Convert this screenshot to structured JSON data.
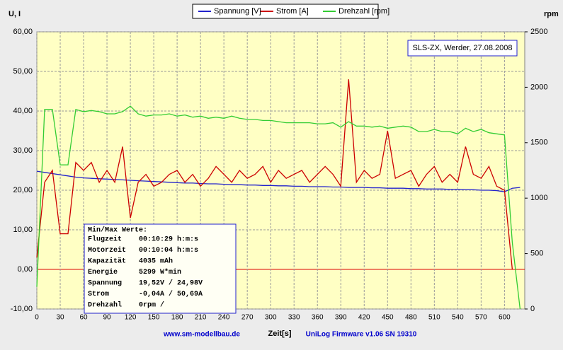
{
  "chart_data": {
    "type": "line",
    "legend": [
      "Spannung [V]",
      "Strom [A]",
      "Drehzahl [rpm]"
    ],
    "y_label": "U, I",
    "y2_label": "rpm",
    "x_label": "Zeit[s]",
    "annotation": "SLS-ZX, Werder, 27.08.2008",
    "footer_left": "www.sm-modellbau.de",
    "footer_right": "UniLog Firmware v1.06 SN 19310",
    "info_box": {
      "title": "Min/Max Werte:",
      "rows": [
        [
          "Flugzeit",
          "00:10:29 h:m:s"
        ],
        [
          "Motorzeit",
          "00:10:04 h:m:s"
        ],
        [
          "Kapazität",
          "4035 mAh"
        ],
        [
          "Energie",
          "5299 W*min"
        ],
        [
          "Spannung",
          "19,52V / 24,98V"
        ],
        [
          "Strom",
          "-0,04A / 50,69A"
        ],
        [
          "Drehzahl",
          "0rpm /"
        ]
      ]
    },
    "x": [
      0,
      10,
      20,
      30,
      40,
      50,
      60,
      70,
      80,
      90,
      100,
      110,
      120,
      130,
      140,
      150,
      160,
      170,
      180,
      190,
      200,
      210,
      220,
      230,
      240,
      250,
      260,
      270,
      280,
      290,
      300,
      310,
      320,
      330,
      340,
      350,
      360,
      370,
      380,
      390,
      400,
      410,
      420,
      430,
      440,
      450,
      460,
      470,
      480,
      490,
      500,
      510,
      520,
      530,
      540,
      550,
      560,
      570,
      580,
      590,
      600,
      610,
      620
    ],
    "series": [
      {
        "name": "Spannung [V]",
        "color": "#2222cc",
        "values": [
          24.8,
          24.5,
          24.2,
          23.9,
          23.6,
          23.3,
          23.1,
          23.0,
          22.9,
          22.8,
          22.7,
          22.6,
          22.5,
          22.4,
          22.3,
          22.2,
          22.1,
          22.0,
          21.9,
          21.8,
          21.8,
          21.7,
          21.6,
          21.6,
          21.5,
          21.4,
          21.4,
          21.3,
          21.3,
          21.2,
          21.2,
          21.1,
          21.1,
          21.0,
          21.0,
          20.9,
          20.9,
          20.9,
          20.8,
          20.8,
          20.7,
          20.7,
          20.7,
          20.6,
          20.6,
          20.5,
          20.5,
          20.5,
          20.4,
          20.4,
          20.3,
          20.3,
          20.3,
          20.2,
          20.2,
          20.1,
          20.1,
          20.0,
          20.0,
          19.9,
          19.6,
          20.5,
          20.7
        ]
      },
      {
        "name": "Strom [A]",
        "color": "#cc0000",
        "values": [
          3,
          22,
          25,
          9,
          9,
          27,
          25,
          27,
          22,
          25,
          22,
          31,
          13,
          22,
          24,
          21,
          22,
          24,
          25,
          22,
          24,
          21,
          23,
          26,
          24,
          22,
          25,
          23,
          24,
          26,
          22,
          25,
          23,
          24,
          25,
          22,
          24,
          26,
          24,
          21,
          48,
          22,
          25,
          23,
          24,
          35,
          23,
          24,
          25,
          21,
          24,
          26,
          22,
          24,
          22,
          31,
          24,
          23,
          26,
          21,
          20,
          0,
          null
        ]
      },
      {
        "name": "Drehzahl [rpm]",
        "color": "#33cc33",
        "axis": "y2",
        "values": [
          200,
          1800,
          1800,
          1300,
          1300,
          1800,
          1780,
          1790,
          1780,
          1760,
          1760,
          1780,
          1830,
          1760,
          1740,
          1750,
          1750,
          1760,
          1740,
          1750,
          1730,
          1740,
          1720,
          1730,
          1720,
          1740,
          1720,
          1710,
          1710,
          1700,
          1700,
          1690,
          1680,
          1680,
          1680,
          1680,
          1670,
          1670,
          1680,
          1640,
          1690,
          1650,
          1650,
          1640,
          1650,
          1630,
          1640,
          1650,
          1640,
          1600,
          1600,
          1620,
          1600,
          1600,
          1580,
          1630,
          1600,
          1620,
          1590,
          1580,
          1570,
          600,
          0
        ]
      }
    ],
    "xlim": [
      0,
      626
    ],
    "xticks": [
      0,
      30,
      60,
      90,
      120,
      150,
      180,
      210,
      240,
      270,
      300,
      330,
      360,
      390,
      420,
      450,
      480,
      510,
      540,
      570,
      600
    ],
    "ylim": [
      -10,
      60
    ],
    "yticks": [
      {
        "value": -10,
        "label": "-10,00"
      },
      {
        "value": 0,
        "label": "0,00"
      },
      {
        "value": 10,
        "label": "10,00"
      },
      {
        "value": 20,
        "label": "20,00"
      },
      {
        "value": 30,
        "label": "30,00"
      },
      {
        "value": 40,
        "label": "40,00"
      },
      {
        "value": 50,
        "label": "50,00"
      },
      {
        "value": 60,
        "label": "60,00"
      }
    ],
    "y2lim": [
      0,
      2500
    ],
    "y2ticks": [
      0,
      500,
      1000,
      1500,
      2000,
      2500
    ],
    "grid": true
  }
}
